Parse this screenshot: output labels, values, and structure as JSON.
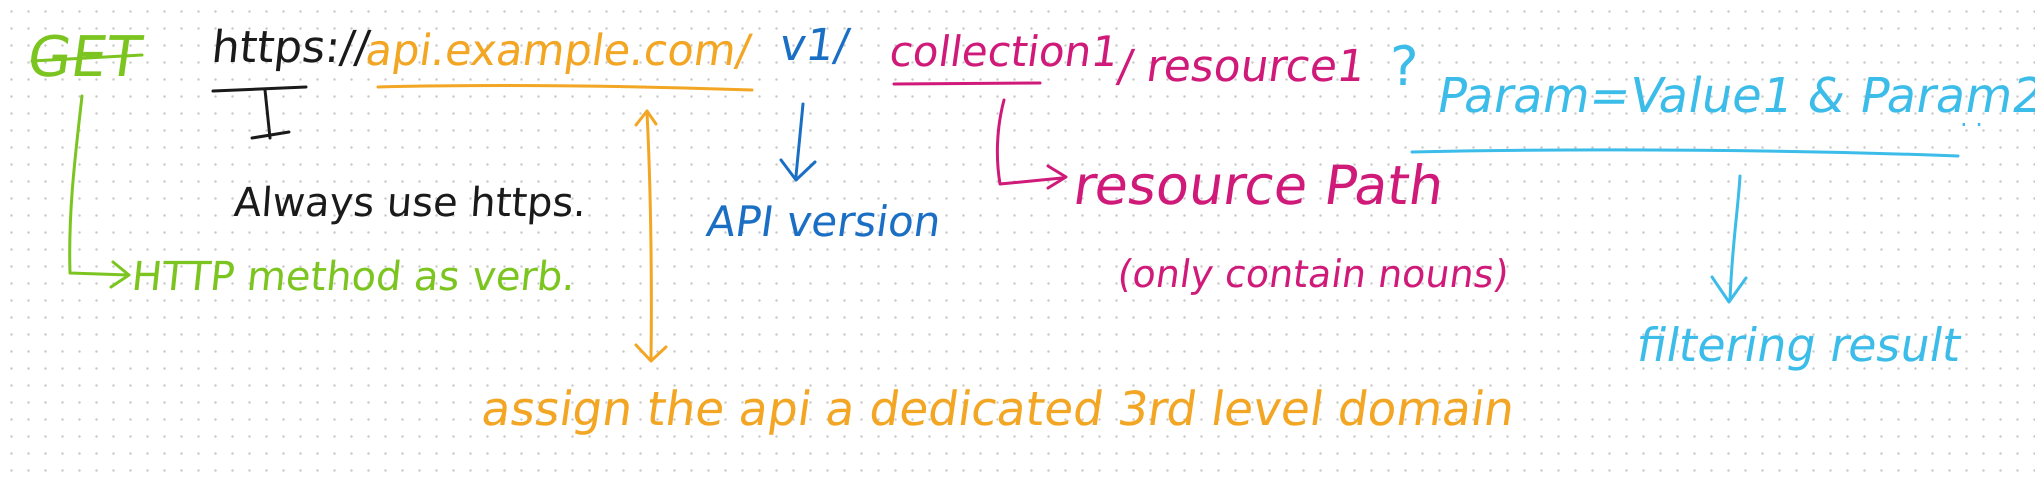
{
  "colors": {
    "method": "#7cc520",
    "scheme": "#1a1a1a",
    "domain": "#f2a623",
    "version": "#1a6fc4",
    "path": "#d01a79",
    "query": "#3bbce9"
  },
  "url": {
    "method": "GET",
    "scheme": "https://",
    "domain": "api.example.com/",
    "version": "v1/",
    "collection": "collection1",
    "resource": "/ resource1",
    "query_mark": "?",
    "query": "Param=Value1 & Param2",
    "trailing": ". ."
  },
  "notes": {
    "method": "HTTP method as verb.",
    "scheme": "Always use https.",
    "domain": "assign the api a dedicated 3rd level domain",
    "version": "API version",
    "path": "resource Path",
    "path_detail": "(only contain nouns)",
    "query": "filtering result"
  }
}
